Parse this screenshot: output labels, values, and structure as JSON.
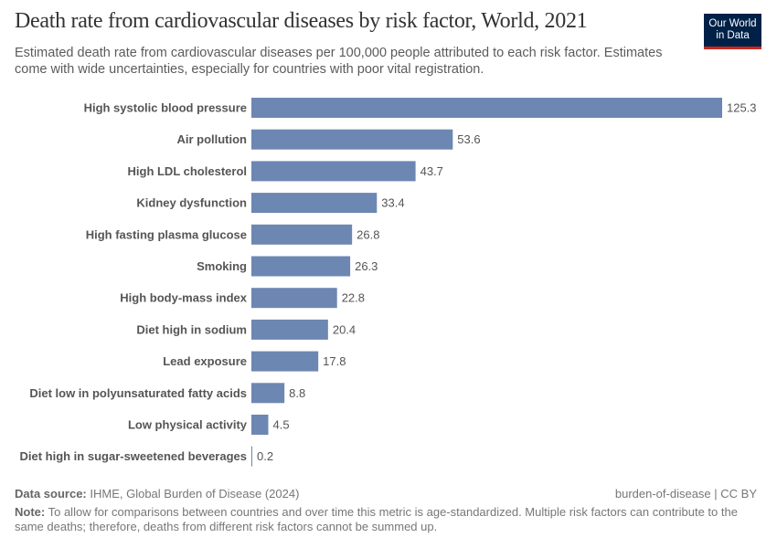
{
  "header": {
    "title": "Death rate from cardiovascular diseases by risk factor, World, 2021",
    "subtitle": "Estimated death rate from cardiovascular diseases per 100,000 people attributed to each risk factor. Estimates come with wide uncertainties, especially for countries with poor vital registration.",
    "logo_line1": "Our World",
    "logo_line2": "in Data"
  },
  "colors": {
    "bar": "#6d87b3",
    "logo_bg": "#002147",
    "logo_accent": "#ce261e"
  },
  "chart_data": {
    "type": "bar",
    "orientation": "horizontal",
    "title": "Death rate from cardiovascular diseases by risk factor, World, 2021",
    "categories": [
      "High systolic blood pressure",
      "Air pollution",
      "High LDL cholesterol",
      "Kidney dysfunction",
      "High fasting plasma glucose",
      "Smoking",
      "High body-mass index",
      "Diet high in sodium",
      "Lead exposure",
      "Diet low in polyunsaturated fatty acids",
      "Low physical activity",
      "Diet high in sugar-sweetened beverages"
    ],
    "values": [
      125.3,
      53.6,
      43.7,
      33.4,
      26.8,
      26.3,
      22.8,
      20.4,
      17.8,
      8.8,
      4.5,
      0.2
    ],
    "value_labels": [
      "125.3",
      "53.6",
      "43.7",
      "33.4",
      "26.8",
      "26.3",
      "22.8",
      "20.4",
      "17.8",
      "8.8",
      "4.5",
      "0.2"
    ],
    "xlim": [
      0,
      125.3
    ],
    "grid": false,
    "data_labels": true
  },
  "footer": {
    "source_label": "Data source:",
    "source_text": "IHME, Global Burden of Disease (2024)",
    "license": "burden-of-disease | CC BY",
    "note_label": "Note:",
    "note_text": "To allow for comparisons between countries and over time this metric is age-standardized. Multiple risk factors can contribute to the same deaths; therefore, deaths from different risk factors cannot be summed up."
  }
}
